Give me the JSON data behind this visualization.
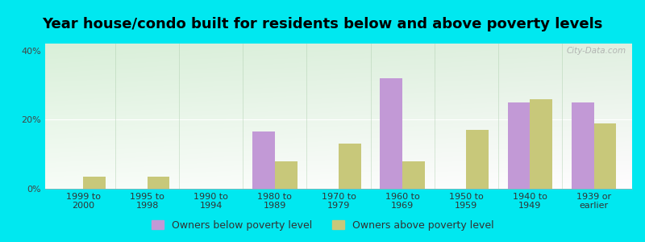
{
  "title": "Year house/condo built for residents below and above poverty levels",
  "categories": [
    "1999 to\n2000",
    "1995 to\n1998",
    "1990 to\n1994",
    "1980 to\n1989",
    "1970 to\n1979",
    "1960 to\n1969",
    "1950 to\n1959",
    "1940 to\n1949",
    "1939 or\nearlier"
  ],
  "below_poverty": [
    0,
    0,
    0,
    16.5,
    0,
    32,
    0,
    25,
    25
  ],
  "above_poverty": [
    3.5,
    3.5,
    0,
    8,
    13,
    8,
    17,
    26,
    19
  ],
  "below_color": "#c299d6",
  "above_color": "#c8c87a",
  "ylim": [
    0,
    42
  ],
  "yticks": [
    0,
    20,
    40
  ],
  "ytick_labels": [
    "0%",
    "20%",
    "40%"
  ],
  "outer_bg": "#00e8f0",
  "bar_width": 0.35,
  "title_fontsize": 13,
  "legend_fontsize": 9,
  "tick_fontsize": 8,
  "watermark": "City-Data.com"
}
